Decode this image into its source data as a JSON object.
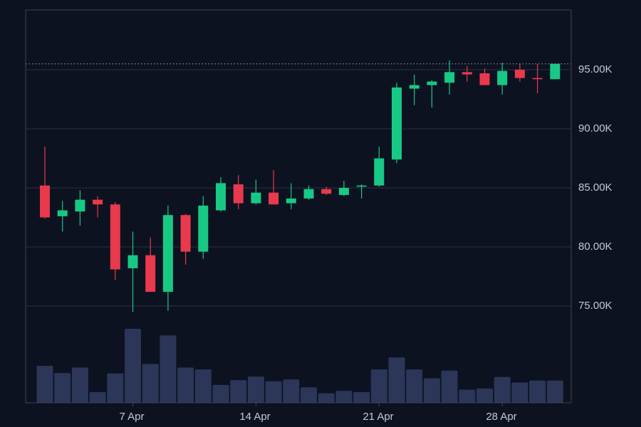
{
  "colors": {
    "background": "#0d1220",
    "grid": "#2a3346",
    "frame": "#3a4456",
    "up": "#17c985",
    "down": "#e8394d",
    "volume": "#2b3658",
    "last_price_line": "#c8cdd8",
    "text": "#c2c8d6"
  },
  "chart_data": {
    "type": "candlestick",
    "price_axis": {
      "position": "right",
      "range": [
        71000,
        98800
      ],
      "ticks": [
        75000,
        80000,
        85000,
        90000,
        95000
      ],
      "tick_labels": [
        "75.00K",
        "80.00K",
        "85.00K",
        "90.00K",
        "95.00K"
      ],
      "grid": true
    },
    "time_axis": {
      "tick_labels": [
        "7 Apr",
        "14 Apr",
        "21 Apr",
        "28 Apr"
      ],
      "tick_index": [
        5,
        12,
        19,
        26
      ]
    },
    "last_price_line": 95500,
    "volume_range": [
      0,
      31000
    ],
    "candles": [
      {
        "o": 85200,
        "h": 88500,
        "l": 82400,
        "c": 82500,
        "v": 15500
      },
      {
        "o": 82600,
        "h": 83900,
        "l": 81300,
        "c": 83100,
        "v": 12500
      },
      {
        "o": 83000,
        "h": 84800,
        "l": 81800,
        "c": 84000,
        "v": 14800
      },
      {
        "o": 84000,
        "h": 84300,
        "l": 82500,
        "c": 83600,
        "v": 4500
      },
      {
        "o": 83600,
        "h": 83800,
        "l": 77200,
        "c": 78100,
        "v": 12300
      },
      {
        "o": 78200,
        "h": 81300,
        "l": 74500,
        "c": 79300,
        "v": 31000
      },
      {
        "o": 79300,
        "h": 80800,
        "l": 76200,
        "c": 76200,
        "v": 16300
      },
      {
        "o": 76200,
        "h": 83500,
        "l": 74600,
        "c": 82700,
        "v": 28200
      },
      {
        "o": 82700,
        "h": 82800,
        "l": 78500,
        "c": 79600,
        "v": 14800
      },
      {
        "o": 79600,
        "h": 84300,
        "l": 79000,
        "c": 83500,
        "v": 14000
      },
      {
        "o": 83100,
        "h": 85900,
        "l": 83000,
        "c": 85400,
        "v": 7500
      },
      {
        "o": 85300,
        "h": 86100,
        "l": 83200,
        "c": 83700,
        "v": 9500
      },
      {
        "o": 83700,
        "h": 85700,
        "l": 83600,
        "c": 84600,
        "v": 11000
      },
      {
        "o": 84600,
        "h": 86500,
        "l": 83600,
        "c": 83600,
        "v": 9000
      },
      {
        "o": 83700,
        "h": 85400,
        "l": 83200,
        "c": 84100,
        "v": 9800
      },
      {
        "o": 84100,
        "h": 85200,
        "l": 84000,
        "c": 84900,
        "v": 6500
      },
      {
        "o": 84900,
        "h": 85100,
        "l": 84400,
        "c": 84500,
        "v": 4000
      },
      {
        "o": 84400,
        "h": 85600,
        "l": 84300,
        "c": 85000,
        "v": 5000
      },
      {
        "o": 85100,
        "h": 85300,
        "l": 84100,
        "c": 85200,
        "v": 4500
      },
      {
        "o": 85200,
        "h": 88500,
        "l": 85100,
        "c": 87500,
        "v": 14000
      },
      {
        "o": 87400,
        "h": 93900,
        "l": 87100,
        "c": 93500,
        "v": 19000
      },
      {
        "o": 93400,
        "h": 94600,
        "l": 92000,
        "c": 93700,
        "v": 14000
      },
      {
        "o": 93700,
        "h": 94100,
        "l": 91800,
        "c": 94000,
        "v": 10300
      },
      {
        "o": 93900,
        "h": 95800,
        "l": 92900,
        "c": 94800,
        "v": 13500
      },
      {
        "o": 94800,
        "h": 95300,
        "l": 94000,
        "c": 94600,
        "v": 5500
      },
      {
        "o": 94700,
        "h": 95100,
        "l": 93700,
        "c": 93700,
        "v": 6000
      },
      {
        "o": 93700,
        "h": 95600,
        "l": 92900,
        "c": 94900,
        "v": 10800
      },
      {
        "o": 95000,
        "h": 95500,
        "l": 94000,
        "c": 94300,
        "v": 8500
      },
      {
        "o": 94300,
        "h": 95500,
        "l": 93000,
        "c": 94200,
        "v": 9300
      },
      {
        "o": 94200,
        "h": 95500,
        "l": 94200,
        "c": 95500,
        "v": 9300
      }
    ]
  }
}
